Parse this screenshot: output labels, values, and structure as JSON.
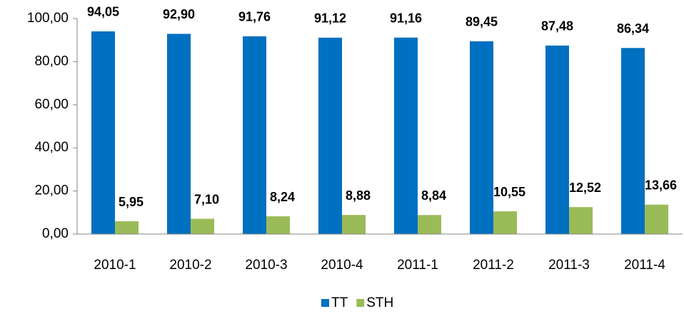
{
  "chart_data": {
    "type": "bar",
    "categories": [
      "2010-1",
      "2010-2",
      "2010-3",
      "2010-4",
      "2011-1",
      "2011-2",
      "2011-3",
      "2011-4"
    ],
    "series": [
      {
        "name": "TT",
        "color": "#0070c0",
        "values": [
          94.05,
          92.9,
          91.76,
          91.12,
          91.16,
          89.45,
          87.48,
          86.34
        ],
        "value_labels": [
          "94,05",
          "92,90",
          "91,76",
          "91,12",
          "91,16",
          "89,45",
          "87,48",
          "86,34"
        ]
      },
      {
        "name": "STH",
        "color": "#9bbb59",
        "values": [
          5.95,
          7.1,
          8.24,
          8.88,
          8.84,
          10.55,
          12.52,
          13.66
        ],
        "value_labels": [
          "5,95",
          "7,10",
          "8,24",
          "8,88",
          "8,84",
          "10,55",
          "12,52",
          "13,66"
        ]
      }
    ],
    "ylim": [
      0,
      100
    ],
    "yticks": [
      {
        "value": 0,
        "label": "0,00"
      },
      {
        "value": 20,
        "label": "20,00"
      },
      {
        "value": 40,
        "label": "40,00"
      },
      {
        "value": 60,
        "label": "60,00"
      },
      {
        "value": 80,
        "label": "80,00"
      },
      {
        "value": 100,
        "label": "100,00"
      }
    ],
    "legend": "bottom"
  }
}
